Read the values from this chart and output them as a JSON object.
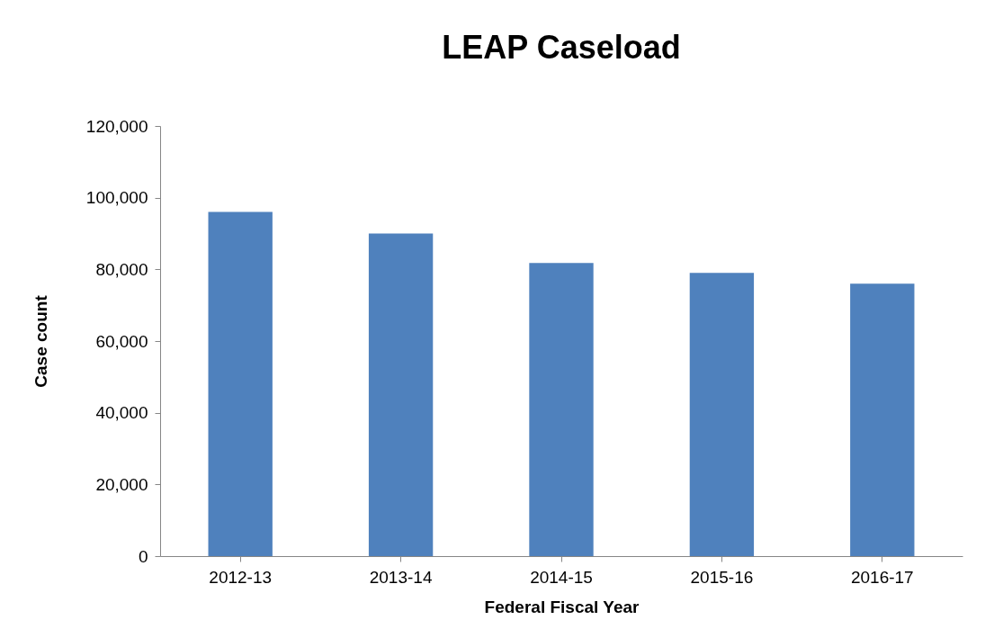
{
  "chart_data": {
    "type": "bar",
    "title": "LEAP Caseload",
    "xlabel": "Federal Fiscal Year",
    "ylabel": "Case count",
    "categories": [
      "2012-13",
      "2013-14",
      "2014-15",
      "2015-16",
      "2016-17"
    ],
    "series": [
      {
        "color": "#4f81bd",
        "values": [
          96000,
          90000,
          81800,
          79000,
          76000
        ]
      }
    ],
    "ylim": [
      0,
      120000
    ],
    "yticks": [
      0,
      {
        "value": 20000,
        "label": "20,000"
      },
      {
        "value": 40000,
        "label": "40,000"
      },
      {
        "value": 60000,
        "label": "60,000"
      },
      {
        "value": 80000,
        "label": "80,000"
      },
      {
        "value": 100000,
        "label": "100,000"
      },
      {
        "value": 120000,
        "label": "120,000"
      }
    ],
    "grid": false,
    "legend": false
  }
}
